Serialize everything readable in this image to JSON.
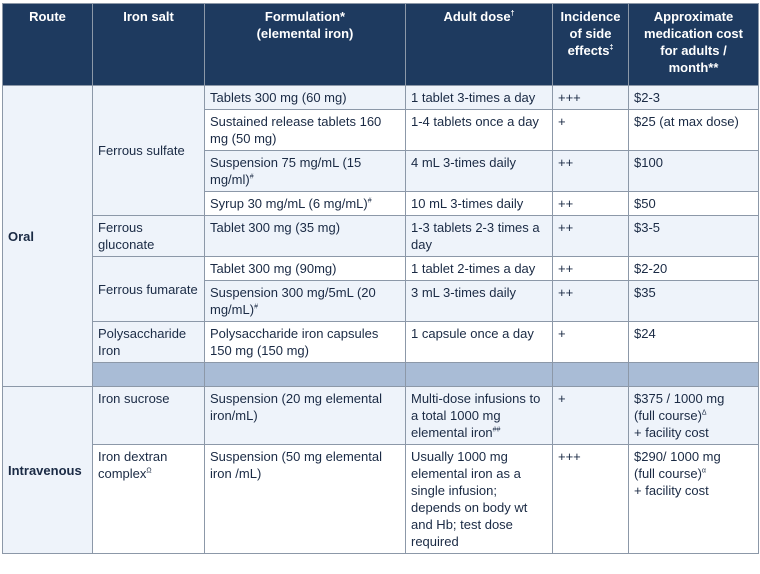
{
  "headers": {
    "route": "Route",
    "salt": "Iron salt",
    "formulation_line1": "Formulation*",
    "formulation_line2": "(elemental iron)",
    "dose": "Adult dose",
    "dose_sup": "†",
    "effects": "Incidence of side effects",
    "effects_sup": "‡",
    "cost": "Approximate medication cost for adults / month**"
  },
  "oral": {
    "route": "Oral",
    "ferrous_sulfate": {
      "salt": "Ferrous sulfate",
      "rows": [
        {
          "formulation": "Tablets 300 mg (60 mg)",
          "dose": "1 tablet 3-times a day",
          "effects": "+++",
          "cost": "$2-3"
        },
        {
          "formulation": "Sustained release tablets 160 mg (50 mg)",
          "dose": "1-4 tablets once a day",
          "effects": "+",
          "cost": "$25 (at max dose)"
        },
        {
          "formulation": "Suspension 75 mg/mL (15 mg/ml)",
          "formulation_sup": "#",
          "dose": "4 mL 3-times daily",
          "effects": "++",
          "cost": "$100"
        },
        {
          "formulation": "Syrup 30 mg/mL (6 mg/mL)",
          "formulation_sup": "#",
          "dose": "10 mL 3-times daily",
          "effects": "++",
          "cost": "$50"
        }
      ]
    },
    "ferrous_gluconate": {
      "salt": "Ferrous gluconate",
      "formulation": "Tablet  300 mg (35 mg)",
      "dose": "1-3 tablets 2-3 times a day",
      "effects": "++",
      "cost": "$3-5"
    },
    "ferrous_fumarate": {
      "salt": "Ferrous fumarate",
      "rows": [
        {
          "formulation": "Tablet 300 mg (90mg)",
          "dose": "1 tablet 2-times a day",
          "effects": "++",
          "cost": "$2-20"
        },
        {
          "formulation": "Suspension  300 mg/5mL (20 mg/mL)",
          "formulation_sup": "#",
          "dose": "3 mL 3-times daily",
          "effects": "++",
          "cost": "$35"
        }
      ]
    },
    "polysaccharide": {
      "salt": "Polysaccharide Iron",
      "formulation": "Polysaccharide iron capsules 150 mg (150 mg)",
      "dose": "1 capsule once a day",
      "effects": "+",
      "cost": "$24"
    }
  },
  "intravenous": {
    "route": "Intravenous",
    "iron_sucrose": {
      "salt": "Iron sucrose",
      "formulation": "Suspension (20 mg elemental iron/mL)",
      "dose": "Multi-dose infusions to a total 1000 mg elemental iron",
      "dose_sup": "##",
      "effects": "+",
      "cost_line1": "$375 / 1000 mg",
      "cost_line2": "(full course)",
      "cost_sup": "Δ",
      "cost_line3": "+ facility cost"
    },
    "iron_dextran": {
      "salt": "Iron dextran complex",
      "salt_sup": "Ω",
      "formulation": "Suspension (50 mg elemental iron /mL)",
      "dose": "Usually 1000 mg elemental iron as a single infusion; depends on body wt and Hb; test dose required",
      "effects": "+++",
      "cost_line1": "$290/ 1000 mg",
      "cost_line2": "(full course)",
      "cost_sup": "α",
      "cost_line3": "+ facility cost"
    }
  }
}
